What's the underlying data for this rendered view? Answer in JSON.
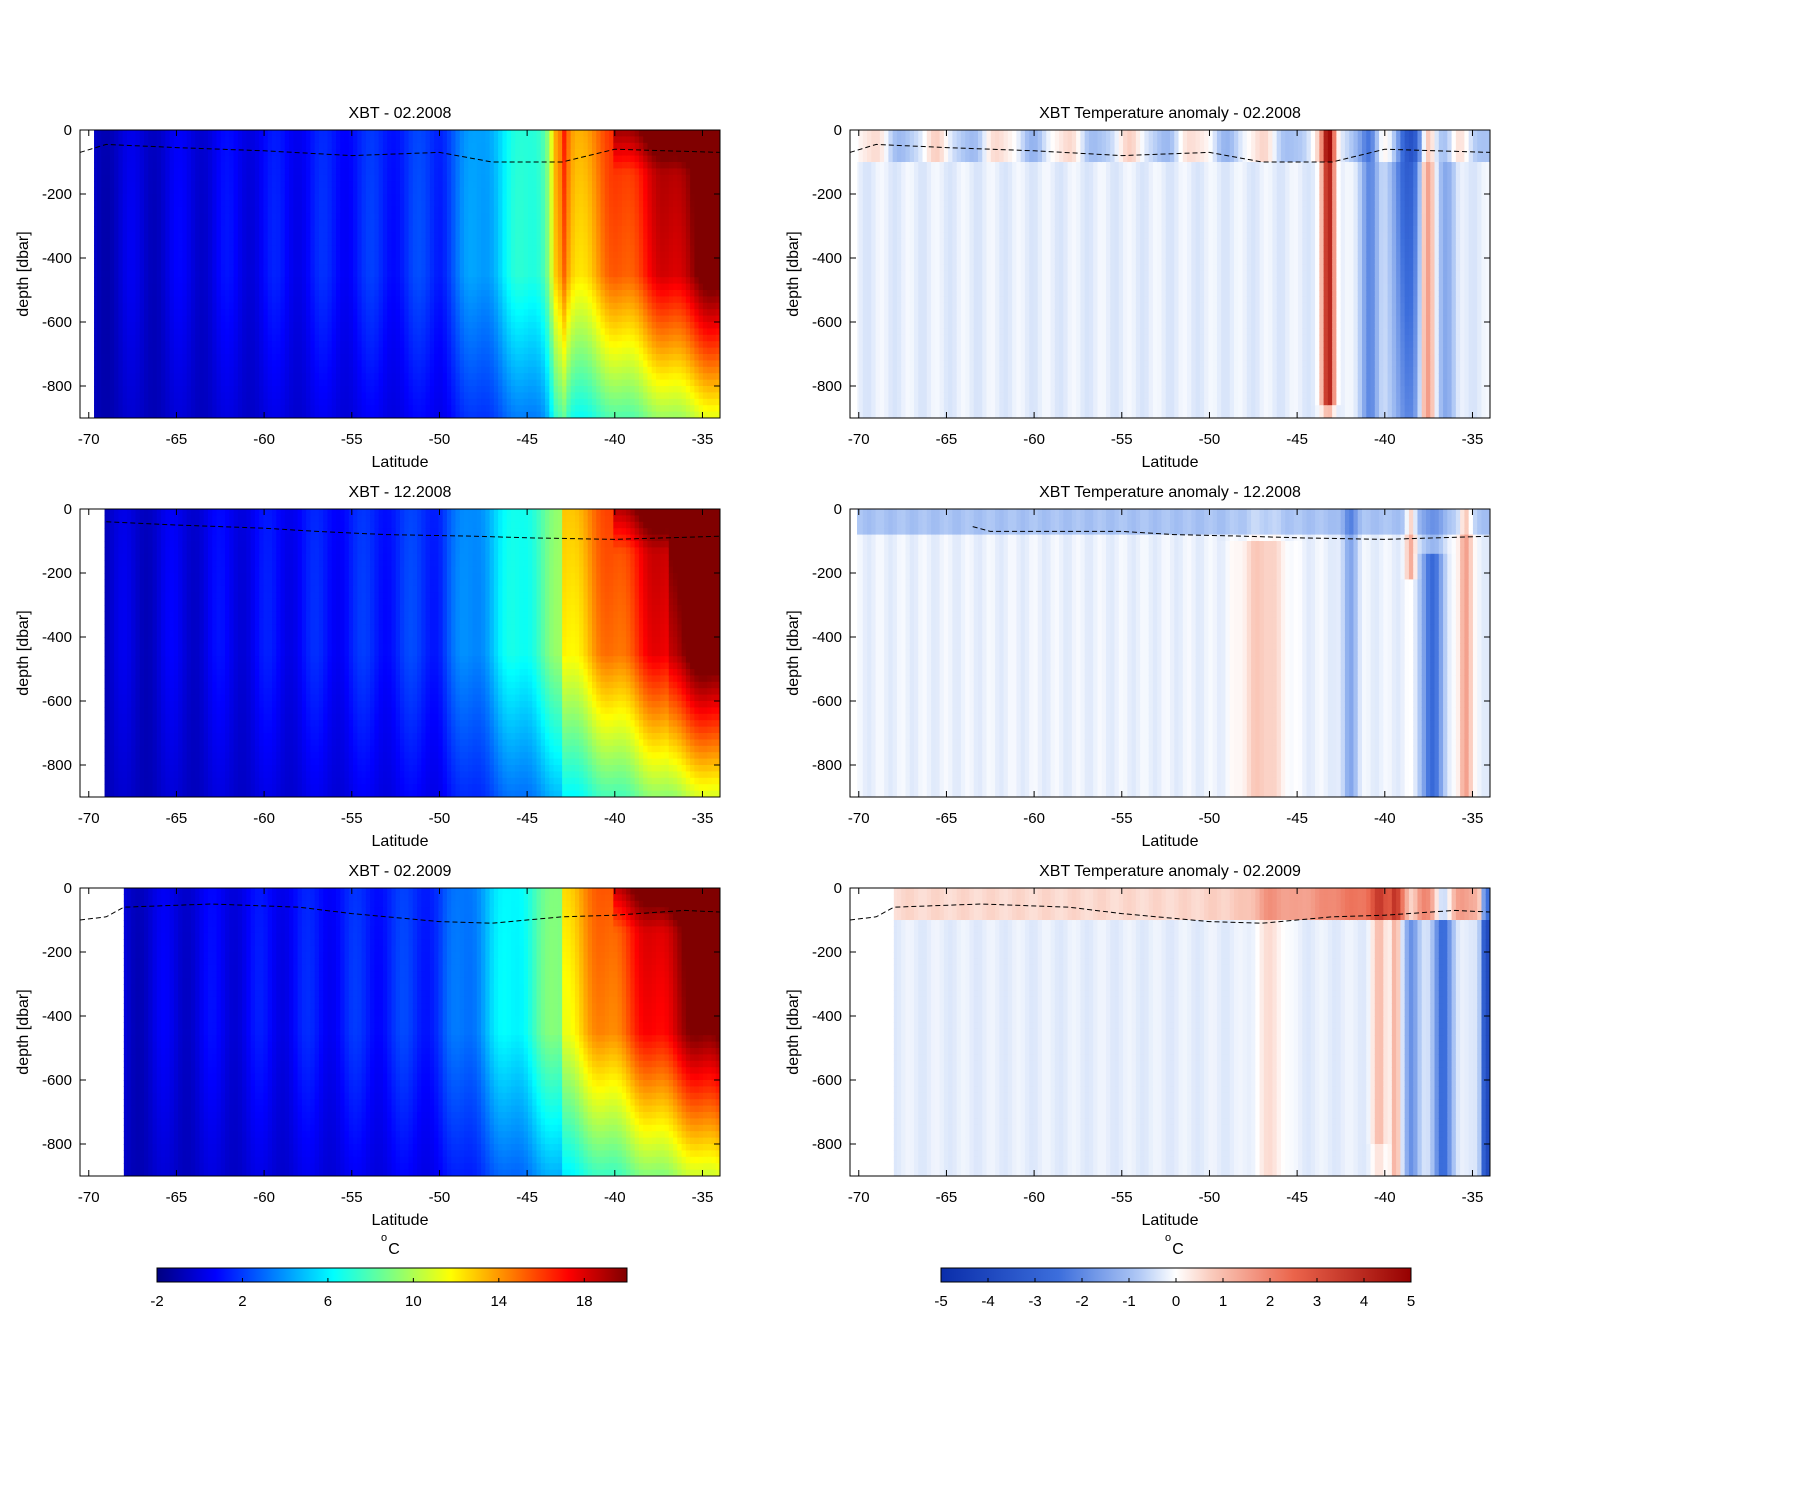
{
  "chart_data": {
    "type": "heatmap",
    "panels": [
      {
        "title": "XBT - 02.2008",
        "variable": "temperature",
        "xlabel": "Latitude",
        "ylabel": "depth [dbar]",
        "xlim": [
          -70.5,
          -34
        ],
        "ylim": [
          -900,
          0
        ],
        "xticks": [
          "-70",
          "-65",
          "-60",
          "-55",
          "-50",
          "-45",
          "-40",
          "-35"
        ],
        "yticks": [
          "0",
          "-200",
          "-400",
          "-600",
          "-800"
        ],
        "mld": [
          [
            -70.5,
            -70
          ],
          [
            -69,
            -45
          ],
          [
            -65,
            -55
          ],
          [
            -60,
            -65
          ],
          [
            -55,
            -80
          ],
          [
            -50,
            -70
          ],
          [
            -47,
            -100
          ],
          [
            -43,
            -100
          ],
          [
            -40,
            -60
          ],
          [
            -34,
            -70
          ]
        ]
      },
      {
        "title": "XBT Temperature anomaly - 02.2008",
        "variable": "anomaly",
        "xlabel": "Latitude",
        "ylabel": "depth [dbar]",
        "xlim": [
          -70.5,
          -34
        ],
        "ylim": [
          -900,
          0
        ],
        "xticks": [
          "-70",
          "-65",
          "-60",
          "-55",
          "-50",
          "-45",
          "-40",
          "-35"
        ],
        "yticks": [
          "0",
          "-200",
          "-400",
          "-600",
          "-800"
        ],
        "mld": [
          [
            -70.5,
            -70
          ],
          [
            -69,
            -45
          ],
          [
            -65,
            -55
          ],
          [
            -60,
            -65
          ],
          [
            -55,
            -80
          ],
          [
            -50,
            -70
          ],
          [
            -47,
            -100
          ],
          [
            -43,
            -100
          ],
          [
            -40,
            -60
          ],
          [
            -34,
            -70
          ]
        ]
      },
      {
        "title": "XBT - 12.2008",
        "variable": "temperature",
        "xlabel": "Latitude",
        "ylabel": "depth [dbar]",
        "xlim": [
          -70.5,
          -34
        ],
        "ylim": [
          -900,
          0
        ],
        "xticks": [
          "-70",
          "-65",
          "-60",
          "-55",
          "-50",
          "-45",
          "-40",
          "-35"
        ],
        "yticks": [
          "0",
          "-200",
          "-400",
          "-600",
          "-800"
        ],
        "mld": [
          [
            -69,
            -40
          ],
          [
            -65,
            -50
          ],
          [
            -60,
            -60
          ],
          [
            -57,
            -70
          ],
          [
            -53,
            -80
          ],
          [
            -48,
            -85
          ],
          [
            -45,
            -90
          ],
          [
            -40,
            -95
          ],
          [
            -34,
            -85
          ]
        ]
      },
      {
        "title": "XBT Temperature anomaly - 12.2008",
        "variable": "anomaly",
        "xlabel": "Latitude",
        "ylabel": "depth [dbar]",
        "xlim": [
          -70.5,
          -34
        ],
        "ylim": [
          -900,
          0
        ],
        "xticks": [
          "-70",
          "-65",
          "-60",
          "-55",
          "-50",
          "-45",
          "-40",
          "-35"
        ],
        "yticks": [
          "0",
          "-200",
          "-400",
          "-600",
          "-800"
        ],
        "mld": [
          [
            -63.5,
            -55
          ],
          [
            -62.5,
            -70
          ],
          [
            -58,
            -70
          ],
          [
            -55,
            -70
          ],
          [
            -52,
            -80
          ],
          [
            -48,
            -85
          ],
          [
            -45,
            -90
          ],
          [
            -40,
            -95
          ],
          [
            -34,
            -85
          ]
        ]
      },
      {
        "title": "XBT - 02.2009",
        "variable": "temperature",
        "xlabel": "Latitude",
        "ylabel": "depth [dbar]",
        "xlim": [
          -70.5,
          -34
        ],
        "ylim": [
          -900,
          0
        ],
        "xticks": [
          "-70",
          "-65",
          "-60",
          "-55",
          "-50",
          "-45",
          "-40",
          "-35"
        ],
        "yticks": [
          "0",
          "-200",
          "-400",
          "-600",
          "-800"
        ],
        "mld": [
          [
            -70.5,
            -100
          ],
          [
            -69,
            -90
          ],
          [
            -68,
            -60
          ],
          [
            -63,
            -50
          ],
          [
            -58,
            -60
          ],
          [
            -55,
            -80
          ],
          [
            -50,
            -105
          ],
          [
            -47,
            -110
          ],
          [
            -43,
            -90
          ],
          [
            -40,
            -85
          ],
          [
            -36,
            -70
          ],
          [
            -34,
            -75
          ]
        ]
      },
      {
        "title": "XBT Temperature anomaly - 02.2009",
        "variable": "anomaly",
        "xlabel": "Latitude",
        "ylabel": "depth [dbar]",
        "xlim": [
          -70.5,
          -34
        ],
        "ylim": [
          -900,
          0
        ],
        "xticks": [
          "-70",
          "-65",
          "-60",
          "-55",
          "-50",
          "-45",
          "-40",
          "-35"
        ],
        "yticks": [
          "0",
          "-200",
          "-400",
          "-600",
          "-800"
        ],
        "mld": [
          [
            -70.5,
            -100
          ],
          [
            -69,
            -90
          ],
          [
            -68,
            -60
          ],
          [
            -63,
            -50
          ],
          [
            -58,
            -60
          ],
          [
            -55,
            -80
          ],
          [
            -50,
            -105
          ],
          [
            -47,
            -110
          ],
          [
            -43,
            -90
          ],
          [
            -40,
            -85
          ],
          [
            -36,
            -70
          ],
          [
            -34,
            -75
          ]
        ]
      }
    ],
    "colorbars": [
      {
        "variable": "temperature",
        "unit_sup": "o",
        "unit": "C",
        "range": [
          -2,
          20
        ],
        "ticks": [
          "-2",
          "2",
          "6",
          "10",
          "14",
          "18"
        ],
        "colormap": "jet"
      },
      {
        "variable": "anomaly",
        "unit_sup": "o",
        "unit": "C",
        "range": [
          -5,
          5
        ],
        "ticks": [
          "-5",
          "-4",
          "-3",
          "-2",
          "-1",
          "0",
          "1",
          "2",
          "3",
          "4",
          "5"
        ],
        "colormap": "blue-white-red"
      }
    ]
  }
}
